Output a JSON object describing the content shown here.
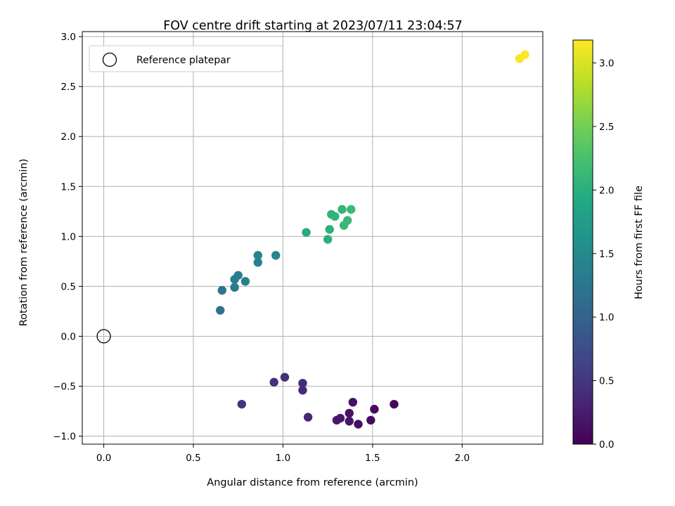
{
  "chart_data": {
    "type": "scatter",
    "title": "FOV centre drift starting at 2023/07/11 23:04:57",
    "xlabel": "Angular distance from reference (arcmin)",
    "ylabel": "Rotation from reference (arcmin)",
    "xlim": [
      -0.12,
      2.45
    ],
    "ylim": [
      -1.08,
      3.05
    ],
    "xticks": [
      0.0,
      0.5,
      1.0,
      1.5,
      2.0
    ],
    "xtick_labels": [
      "0.0",
      "0.5",
      "1.0",
      "1.5",
      "2.0"
    ],
    "yticks": [
      -1.0,
      -0.5,
      0.0,
      0.5,
      1.0,
      1.5,
      2.0,
      2.5,
      3.0
    ],
    "ytick_labels": [
      "−1.0",
      "−0.5",
      "0.0",
      "0.5",
      "1.0",
      "1.5",
      "2.0",
      "2.5",
      "3.0"
    ],
    "grid": true,
    "colormap": "viridis",
    "colorbar": {
      "label": "Hours from first FF file",
      "range": [
        0.0,
        3.18
      ],
      "ticks": [
        0.0,
        0.5,
        1.0,
        1.5,
        2.0,
        2.5,
        3.0
      ],
      "tick_labels": [
        "0.0",
        "0.5",
        "1.0",
        "1.5",
        "2.0",
        "2.5",
        "3.0"
      ]
    },
    "legend": {
      "position": "top-left",
      "entries": [
        {
          "label": "Reference platepar",
          "marker": "open-circle"
        }
      ]
    },
    "reference_point": {
      "x": 0.0,
      "y": 0.0,
      "name": "Reference platepar"
    },
    "points": [
      {
        "x": 1.62,
        "y": -0.68,
        "hours": 0.05
      },
      {
        "x": 1.51,
        "y": -0.73,
        "hours": 0.08
      },
      {
        "x": 1.49,
        "y": -0.84,
        "hours": 0.1
      },
      {
        "x": 1.42,
        "y": -0.88,
        "hours": 0.12
      },
      {
        "x": 1.39,
        "y": -0.66,
        "hours": 0.14
      },
      {
        "x": 1.37,
        "y": -0.77,
        "hours": 0.16
      },
      {
        "x": 1.37,
        "y": -0.85,
        "hours": 0.18
      },
      {
        "x": 1.32,
        "y": -0.82,
        "hours": 0.2
      },
      {
        "x": 1.3,
        "y": -0.84,
        "hours": 0.22
      },
      {
        "x": 1.14,
        "y": -0.81,
        "hours": 0.35
      },
      {
        "x": 1.11,
        "y": -0.54,
        "hours": 0.38
      },
      {
        "x": 1.11,
        "y": -0.47,
        "hours": 0.4
      },
      {
        "x": 1.01,
        "y": -0.41,
        "hours": 0.42
      },
      {
        "x": 0.95,
        "y": -0.46,
        "hours": 0.44
      },
      {
        "x": 0.77,
        "y": -0.68,
        "hours": 0.48
      },
      {
        "x": 0.65,
        "y": 0.26,
        "hours": 1.2
      },
      {
        "x": 0.66,
        "y": 0.46,
        "hours": 1.25
      },
      {
        "x": 0.73,
        "y": 0.49,
        "hours": 1.3
      },
      {
        "x": 0.73,
        "y": 0.57,
        "hours": 1.32
      },
      {
        "x": 0.75,
        "y": 0.61,
        "hours": 1.34
      },
      {
        "x": 0.79,
        "y": 0.55,
        "hours": 1.36
      },
      {
        "x": 0.86,
        "y": 0.74,
        "hours": 1.4
      },
      {
        "x": 0.86,
        "y": 0.81,
        "hours": 1.42
      },
      {
        "x": 0.96,
        "y": 0.81,
        "hours": 1.45
      },
      {
        "x": 1.13,
        "y": 1.04,
        "hours": 1.95
      },
      {
        "x": 1.25,
        "y": 0.97,
        "hours": 2.0
      },
      {
        "x": 1.26,
        "y": 1.07,
        "hours": 2.02
      },
      {
        "x": 1.27,
        "y": 1.22,
        "hours": 2.05
      },
      {
        "x": 1.29,
        "y": 1.2,
        "hours": 2.07
      },
      {
        "x": 1.33,
        "y": 1.27,
        "hours": 2.09
      },
      {
        "x": 1.34,
        "y": 1.11,
        "hours": 2.1
      },
      {
        "x": 1.36,
        "y": 1.16,
        "hours": 2.12
      },
      {
        "x": 1.38,
        "y": 1.27,
        "hours": 2.14
      },
      {
        "x": 2.32,
        "y": 2.78,
        "hours": 3.15
      },
      {
        "x": 2.35,
        "y": 2.82,
        "hours": 3.18
      }
    ]
  }
}
